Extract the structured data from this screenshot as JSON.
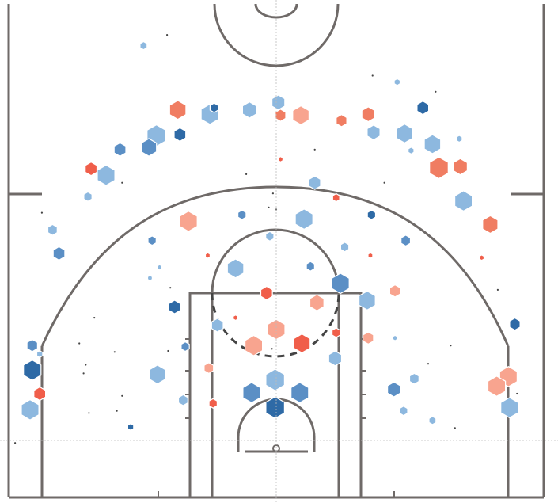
{
  "chart_data": {
    "type": "hexbin",
    "title": "",
    "xlabel": "",
    "ylabel": "",
    "court": {
      "x_range": [
        -25,
        25
      ],
      "y_range": [
        -5,
        42
      ],
      "units": "ft",
      "basket": [
        0,
        0
      ]
    },
    "color_scale": {
      "low": "#2e6aa6",
      "mid_low": "#8db8df",
      "mid_high": "#f8a48f",
      "high": "#ef5a43"
    },
    "hexbins": [
      {
        "x": 0.2,
        "y": 32.3,
        "size": 0.55,
        "color": "#8db8df"
      },
      {
        "x": -9.2,
        "y": 31.6,
        "size": 0.7,
        "color": "#f07d62"
      },
      {
        "x": -6.2,
        "y": 31.2,
        "size": 0.75,
        "color": "#8db8df"
      },
      {
        "x": -2.5,
        "y": 31.6,
        "size": 0.6,
        "color": "#8db8df"
      },
      {
        "x": 0.4,
        "y": 31.1,
        "size": 0.45,
        "color": "#f07d62"
      },
      {
        "x": 2.3,
        "y": 31.1,
        "size": 0.7,
        "color": "#f8a48f"
      },
      {
        "x": 6.1,
        "y": 30.6,
        "size": 0.45,
        "color": "#f07d62"
      },
      {
        "x": 8.6,
        "y": 31.2,
        "size": 0.55,
        "color": "#f07d62"
      },
      {
        "x": 13.7,
        "y": 31.8,
        "size": 0.5,
        "color": "#2e6aa6"
      },
      {
        "x": 11.3,
        "y": 34.2,
        "size": 0.25,
        "color": "#8db8df"
      },
      {
        "x": -5.8,
        "y": 31.8,
        "size": 0.35,
        "color": "#2e6aa6"
      },
      {
        "x": -11.2,
        "y": 29.2,
        "size": 0.8,
        "color": "#8db8df"
      },
      {
        "x": -9.0,
        "y": 29.3,
        "size": 0.5,
        "color": "#2e6aa6"
      },
      {
        "x": -11.9,
        "y": 28.1,
        "size": 0.65,
        "color": "#5b8fc5"
      },
      {
        "x": -14.6,
        "y": 27.9,
        "size": 0.5,
        "color": "#5b8fc5"
      },
      {
        "x": 9.1,
        "y": 29.5,
        "size": 0.55,
        "color": "#8db8df"
      },
      {
        "x": 12.0,
        "y": 29.4,
        "size": 0.7,
        "color": "#8db8df"
      },
      {
        "x": 14.6,
        "y": 28.4,
        "size": 0.7,
        "color": "#8db8df"
      },
      {
        "x": 12.6,
        "y": 27.8,
        "size": 0.25,
        "color": "#8db8df"
      },
      {
        "x": 17.1,
        "y": 28.9,
        "size": 0.25,
        "color": "#8db8df"
      },
      {
        "x": -17.3,
        "y": 26.1,
        "size": 0.5,
        "color": "#f05e4a"
      },
      {
        "x": -15.9,
        "y": 25.5,
        "size": 0.75,
        "color": "#8db8df"
      },
      {
        "x": -17.6,
        "y": 23.5,
        "size": 0.35,
        "color": "#8db8df"
      },
      {
        "x": 15.2,
        "y": 26.2,
        "size": 0.8,
        "color": "#f07d62"
      },
      {
        "x": 17.2,
        "y": 26.3,
        "size": 0.6,
        "color": "#f07d62"
      },
      {
        "x": 17.5,
        "y": 23.1,
        "size": 0.75,
        "color": "#8db8df"
      },
      {
        "x": 20.0,
        "y": 20.9,
        "size": 0.65,
        "color": "#f07d62"
      },
      {
        "x": 0.4,
        "y": 27.0,
        "size": 0.2,
        "color": "#f05e4a"
      },
      {
        "x": 3.6,
        "y": 24.8,
        "size": 0.5,
        "color": "#8db8df"
      },
      {
        "x": 5.6,
        "y": 23.4,
        "size": 0.3,
        "color": "#f05e4a"
      },
      {
        "x": 8.9,
        "y": 21.8,
        "size": 0.35,
        "color": "#2e6aa6"
      },
      {
        "x": -8.2,
        "y": 21.2,
        "size": 0.75,
        "color": "#f8a48f"
      },
      {
        "x": -3.2,
        "y": 21.8,
        "size": 0.35,
        "color": "#5b8fc5"
      },
      {
        "x": 2.6,
        "y": 21.4,
        "size": 0.75,
        "color": "#8db8df"
      },
      {
        "x": -0.6,
        "y": 19.8,
        "size": 0.35,
        "color": "#8db8df"
      },
      {
        "x": -11.6,
        "y": 19.4,
        "size": 0.35,
        "color": "#5b8fc5"
      },
      {
        "x": 6.4,
        "y": 18.8,
        "size": 0.35,
        "color": "#8db8df"
      },
      {
        "x": -20.9,
        "y": 20.4,
        "size": 0.4,
        "color": "#8db8df"
      },
      {
        "x": -20.3,
        "y": 18.2,
        "size": 0.5,
        "color": "#5b8fc5"
      },
      {
        "x": 12.1,
        "y": 19.4,
        "size": 0.4,
        "color": "#5b8fc5"
      },
      {
        "x": -6.4,
        "y": 18.0,
        "size": 0.2,
        "color": "#f05e4a"
      },
      {
        "x": -3.8,
        "y": 16.8,
        "size": 0.7,
        "color": "#8db8df"
      },
      {
        "x": 3.2,
        "y": 17.0,
        "size": 0.35,
        "color": "#5b8fc5"
      },
      {
        "x": 6.0,
        "y": 15.4,
        "size": 0.75,
        "color": "#5b8fc5"
      },
      {
        "x": 8.8,
        "y": 18.0,
        "size": 0.2,
        "color": "#f05e4a"
      },
      {
        "x": -11.8,
        "y": 15.9,
        "size": 0.2,
        "color": "#8db8df"
      },
      {
        "x": -0.9,
        "y": 14.5,
        "size": 0.5,
        "color": "#f05e4a"
      },
      {
        "x": 3.8,
        "y": 13.6,
        "size": 0.6,
        "color": "#f8a48f"
      },
      {
        "x": 8.5,
        "y": 13.8,
        "size": 0.7,
        "color": "#8db8df"
      },
      {
        "x": 11.1,
        "y": 14.7,
        "size": 0.45,
        "color": "#f8a48f"
      },
      {
        "x": 19.2,
        "y": 17.8,
        "size": 0.2,
        "color": "#f05e4a"
      },
      {
        "x": -9.5,
        "y": 13.2,
        "size": 0.5,
        "color": "#2e6aa6"
      },
      {
        "x": -5.5,
        "y": 11.5,
        "size": 0.5,
        "color": "#8db8df"
      },
      {
        "x": -3.8,
        "y": 12.2,
        "size": 0.2,
        "color": "#f05e4a"
      },
      {
        "x": 0.0,
        "y": 11.1,
        "size": 0.75,
        "color": "#f8a48f"
      },
      {
        "x": 5.6,
        "y": 10.8,
        "size": 0.35,
        "color": "#f05e4a"
      },
      {
        "x": 8.6,
        "y": 10.3,
        "size": 0.45,
        "color": "#f8a48f"
      },
      {
        "x": -8.5,
        "y": 9.5,
        "size": 0.35,
        "color": "#5b8fc5"
      },
      {
        "x": -2.1,
        "y": 9.6,
        "size": 0.75,
        "color": "#f8a48f"
      },
      {
        "x": 2.4,
        "y": 9.8,
        "size": 0.7,
        "color": "#f05e4a"
      },
      {
        "x": 11.1,
        "y": 10.3,
        "size": 0.2,
        "color": "#8db8df"
      },
      {
        "x": 5.5,
        "y": 8.4,
        "size": 0.55,
        "color": "#8db8df"
      },
      {
        "x": 22.3,
        "y": 11.6,
        "size": 0.45,
        "color": "#2e6aa6"
      },
      {
        "x": -22.8,
        "y": 9.6,
        "size": 0.45,
        "color": "#5b8fc5"
      },
      {
        "x": -22.1,
        "y": 8.8,
        "size": 0.25,
        "color": "#8db8df"
      },
      {
        "x": -22.8,
        "y": 7.3,
        "size": 0.75,
        "color": "#2e6aa6"
      },
      {
        "x": -6.3,
        "y": 7.5,
        "size": 0.4,
        "color": "#f8a48f"
      },
      {
        "x": -11.1,
        "y": 6.9,
        "size": 0.7,
        "color": "#8db8df"
      },
      {
        "x": -0.1,
        "y": 6.4,
        "size": 0.8,
        "color": "#8db8df"
      },
      {
        "x": 11.0,
        "y": 5.5,
        "size": 0.55,
        "color": "#5b8fc5"
      },
      {
        "x": 12.9,
        "y": 6.5,
        "size": 0.4,
        "color": "#8db8df"
      },
      {
        "x": 21.7,
        "y": 6.7,
        "size": 0.75,
        "color": "#f8a48f"
      },
      {
        "x": 20.6,
        "y": 5.8,
        "size": 0.75,
        "color": "#f8a48f"
      },
      {
        "x": -22.1,
        "y": 5.1,
        "size": 0.5,
        "color": "#f05e4a"
      },
      {
        "x": -2.3,
        "y": 5.2,
        "size": 0.75,
        "color": "#5b8fc5"
      },
      {
        "x": 2.2,
        "y": 5.2,
        "size": 0.75,
        "color": "#5b8fc5"
      },
      {
        "x": -8.7,
        "y": 4.5,
        "size": 0.4,
        "color": "#8db8df"
      },
      {
        "x": -5.9,
        "y": 4.2,
        "size": 0.35,
        "color": "#f05e4a"
      },
      {
        "x": -0.1,
        "y": 3.8,
        "size": 0.8,
        "color": "#2e6aa6"
      },
      {
        "x": -23.0,
        "y": 3.6,
        "size": 0.75,
        "color": "#8db8df"
      },
      {
        "x": 21.8,
        "y": 3.8,
        "size": 0.75,
        "color": "#8db8df"
      },
      {
        "x": 11.9,
        "y": 3.5,
        "size": 0.35,
        "color": "#8db8df"
      },
      {
        "x": 14.6,
        "y": 2.6,
        "size": 0.3,
        "color": "#8db8df"
      },
      {
        "x": -13.6,
        "y": 2.0,
        "size": 0.25,
        "color": "#2e6aa6"
      },
      {
        "x": -10.9,
        "y": 16.9,
        "size": 0.2,
        "color": "#8db8df"
      },
      {
        "x": -12.4,
        "y": 37.6,
        "size": 0.3,
        "color": "#8db8df"
      }
    ],
    "small_points": [
      {
        "x": -10.2,
        "y": 38.6
      },
      {
        "x": -2.8,
        "y": 25.6
      },
      {
        "x": -0.3,
        "y": 23.8
      },
      {
        "x": -14.4,
        "y": 24.8
      },
      {
        "x": 10.1,
        "y": 24.8
      },
      {
        "x": 14.9,
        "y": 33.3
      },
      {
        "x": -18.4,
        "y": 9.8
      },
      {
        "x": -18.0,
        "y": 7.0
      },
      {
        "x": -14.4,
        "y": 4.9
      },
      {
        "x": -14.9,
        "y": 3.5
      },
      {
        "x": -17.5,
        "y": 3.3
      },
      {
        "x": -17.8,
        "y": 7.8
      },
      {
        "x": -15.1,
        "y": 9.0
      },
      {
        "x": 14.2,
        "y": 7.9
      },
      {
        "x": 16.7,
        "y": 1.9
      },
      {
        "x": 16.3,
        "y": 9.6
      },
      {
        "x": -24.4,
        "y": 0.5
      },
      {
        "x": -10.1,
        "y": 9.1
      },
      {
        "x": -9.9,
        "y": 15.0
      },
      {
        "x": -17.0,
        "y": 12.2
      },
      {
        "x": 20.7,
        "y": 14.8
      },
      {
        "x": 22.5,
        "y": 5.1
      },
      {
        "x": -21.9,
        "y": 22.0
      },
      {
        "x": 3.6,
        "y": 27.9
      },
      {
        "x": 9.0,
        "y": 34.8
      },
      {
        "x": 0.0,
        "y": 22.3
      },
      {
        "x": -0.7,
        "y": 22.5
      },
      {
        "x": -0.4,
        "y": 9.3
      }
    ]
  }
}
